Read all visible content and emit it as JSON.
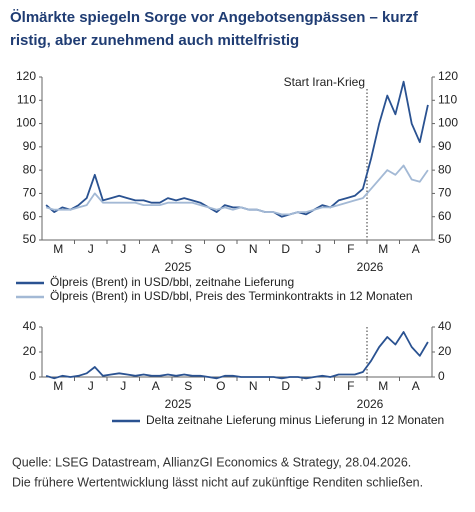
{
  "title": "Ölmärkte spiegeln Sorge vor Angebotsengpässen – kurzfristig, aber zunehmend auch mittelfristig",
  "notes": [
    "Quelle: LSEG Datastream, AllianzGI Economics & Strategy, 28.04.2026.",
    "Die frühere Wertentwicklung lässt nicht auf zukünftige Renditen schließen."
  ],
  "chart_data": [
    {
      "type": "line",
      "categories": [
        null,
        null,
        "M",
        null,
        null,
        null,
        "J",
        null,
        null,
        null,
        "J",
        null,
        null,
        null,
        "A",
        null,
        null,
        null,
        "S",
        null,
        null,
        null,
        "O",
        null,
        null,
        null,
        "N",
        null,
        null,
        null,
        "D",
        null,
        null,
        null,
        "J",
        null,
        null,
        null,
        "F",
        null,
        null,
        null,
        "M",
        null,
        null,
        null,
        "A",
        null
      ],
      "x_group_labels": [
        "2025",
        "2026"
      ],
      "annotation": "Start Iran-Krieg",
      "ylim": [
        50,
        120
      ],
      "yticks": [
        50,
        60,
        70,
        80,
        90,
        100,
        110,
        120
      ],
      "series": [
        {
          "name": "Ölpreis (Brent) in USD/bbl, zeitnahe Lieferung",
          "color": "#2a5291",
          "values": [
            65,
            62,
            64,
            63,
            65,
            68,
            78,
            67,
            68,
            69,
            68,
            67,
            67,
            66,
            66,
            68,
            67,
            68,
            67,
            66,
            64,
            62,
            65,
            64,
            64,
            63,
            63,
            62,
            62,
            60,
            61,
            62,
            61,
            63,
            65,
            64,
            67,
            68,
            69,
            72,
            85,
            100,
            112,
            104,
            118,
            100,
            92,
            108
          ]
        },
        {
          "name": "Ölpreis (Brent) in USD/bbl, Preis des Terminkontrakts in 12 Monaten",
          "color": "#a3b9d5",
          "values": [
            64,
            63,
            63,
            63,
            64,
            65,
            70,
            66,
            66,
            66,
            66,
            66,
            65,
            65,
            65,
            66,
            66,
            66,
            66,
            65,
            64,
            63,
            64,
            63,
            64,
            63,
            63,
            62,
            62,
            61,
            61,
            62,
            62,
            63,
            64,
            64,
            65,
            66,
            67,
            68,
            72,
            76,
            80,
            78,
            82,
            76,
            75,
            80
          ]
        }
      ]
    },
    {
      "type": "line",
      "categories": [
        null,
        null,
        "M",
        null,
        null,
        null,
        "J",
        null,
        null,
        null,
        "J",
        null,
        null,
        null,
        "A",
        null,
        null,
        null,
        "S",
        null,
        null,
        null,
        "O",
        null,
        null,
        null,
        "N",
        null,
        null,
        null,
        "D",
        null,
        null,
        null,
        "J",
        null,
        null,
        null,
        "F",
        null,
        null,
        null,
        "M",
        null,
        null,
        null,
        "A",
        null
      ],
      "x_group_labels": [
        "2025",
        "2026"
      ],
      "ylim": [
        0,
        40
      ],
      "yticks": [
        0,
        20,
        40
      ],
      "series": [
        {
          "name": "Delta zeitnahe Lieferung minus Lieferung in 12 Monaten",
          "color": "#2a5291",
          "values": [
            1,
            -1,
            1,
            0,
            1,
            3,
            8,
            1,
            2,
            3,
            2,
            1,
            2,
            1,
            1,
            2,
            1,
            2,
            1,
            1,
            0,
            -1,
            1,
            1,
            0,
            0,
            0,
            0,
            0,
            -1,
            0,
            0,
            -1,
            0,
            1,
            0,
            2,
            2,
            2,
            4,
            13,
            24,
            32,
            26,
            36,
            24,
            17,
            28
          ]
        }
      ]
    }
  ]
}
